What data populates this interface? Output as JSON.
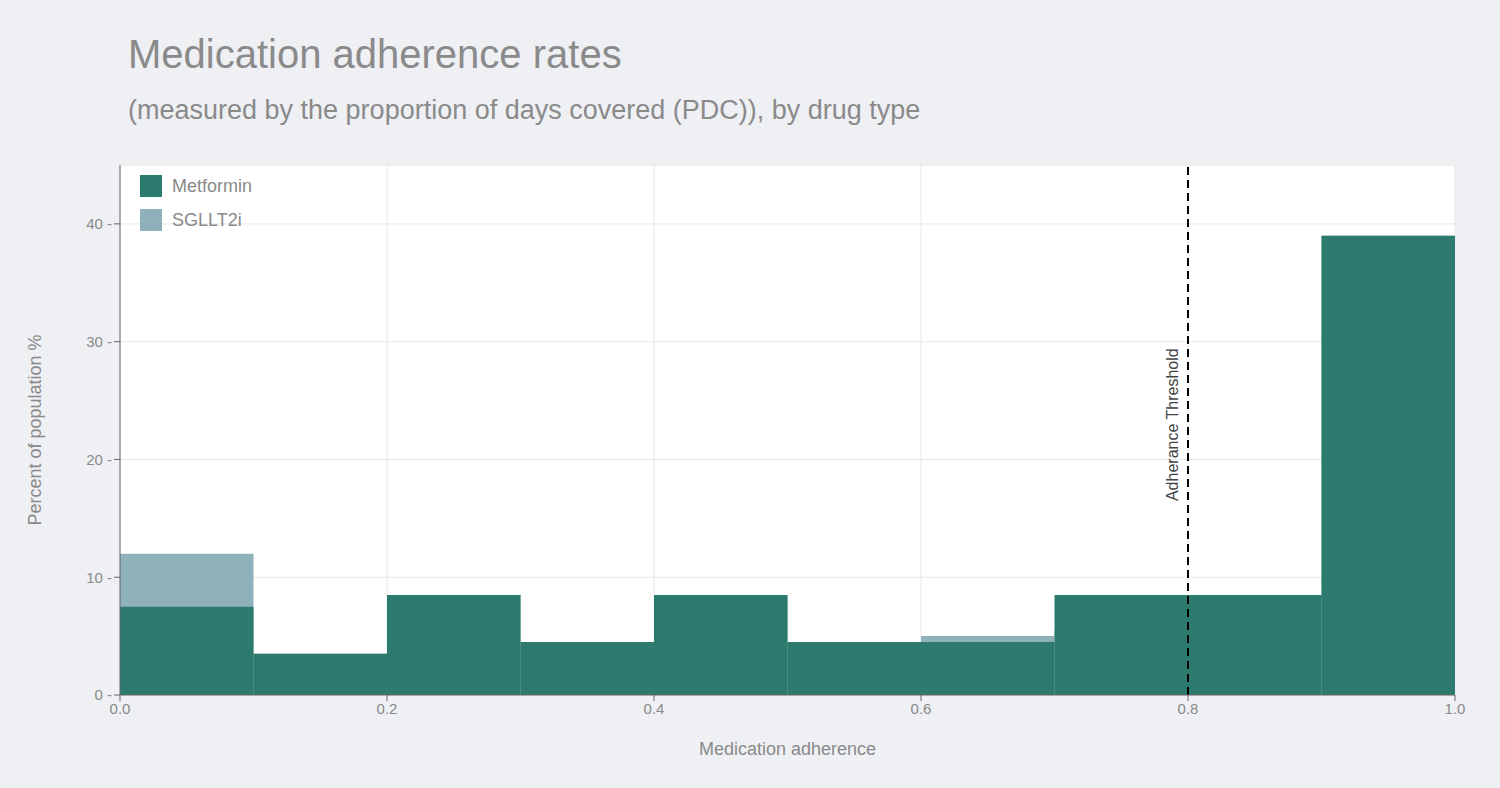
{
  "chart_data": {
    "type": "histogram",
    "title": "Medication adherence rates",
    "subtitle": "(measured by the proportion of days covered (PDC)), by drug type",
    "x_label": "Medication adherence",
    "y_label": "Percent of population %",
    "bins": [
      0.0,
      0.1,
      0.2,
      0.3,
      0.4,
      0.5,
      0.6,
      0.7,
      0.8,
      0.9,
      1.0
    ],
    "series": [
      {
        "name": "Metformin",
        "color": "#2d7a6e",
        "values": [
          7.5,
          3.5,
          8.5,
          4.5,
          8.5,
          4.5,
          4.5,
          8.5,
          8.5,
          39.0
        ]
      },
      {
        "name": "SGLLT2i",
        "color": "#7ba3b0",
        "values": [
          12.0,
          3.5,
          8.5,
          4.5,
          8.5,
          4.5,
          5.0,
          5.5,
          8.5,
          39.0
        ]
      }
    ],
    "xlim": [
      0.0,
      1.0
    ],
    "xticks": [
      {
        "value": 0.0,
        "label": "0.0"
      },
      {
        "value": 0.2,
        "label": "0.2"
      },
      {
        "value": 0.4,
        "label": "0.4"
      },
      {
        "value": 0.6,
        "label": "0.6"
      },
      {
        "value": 0.8,
        "label": "0.8"
      },
      {
        "value": 1.0,
        "label": "1.0"
      }
    ],
    "ylim": [
      0,
      45
    ],
    "yticks": [
      {
        "value": 0,
        "label": "0 -"
      },
      {
        "value": 10,
        "label": "10 -"
      },
      {
        "value": 20,
        "label": "20 -"
      },
      {
        "value": 30,
        "label": "30 -"
      },
      {
        "value": 40,
        "label": "40 -"
      }
    ],
    "grid": true,
    "legend": "upper left",
    "annotations": [
      {
        "x": 0.8,
        "text": "Adherance Threshold"
      }
    ]
  }
}
